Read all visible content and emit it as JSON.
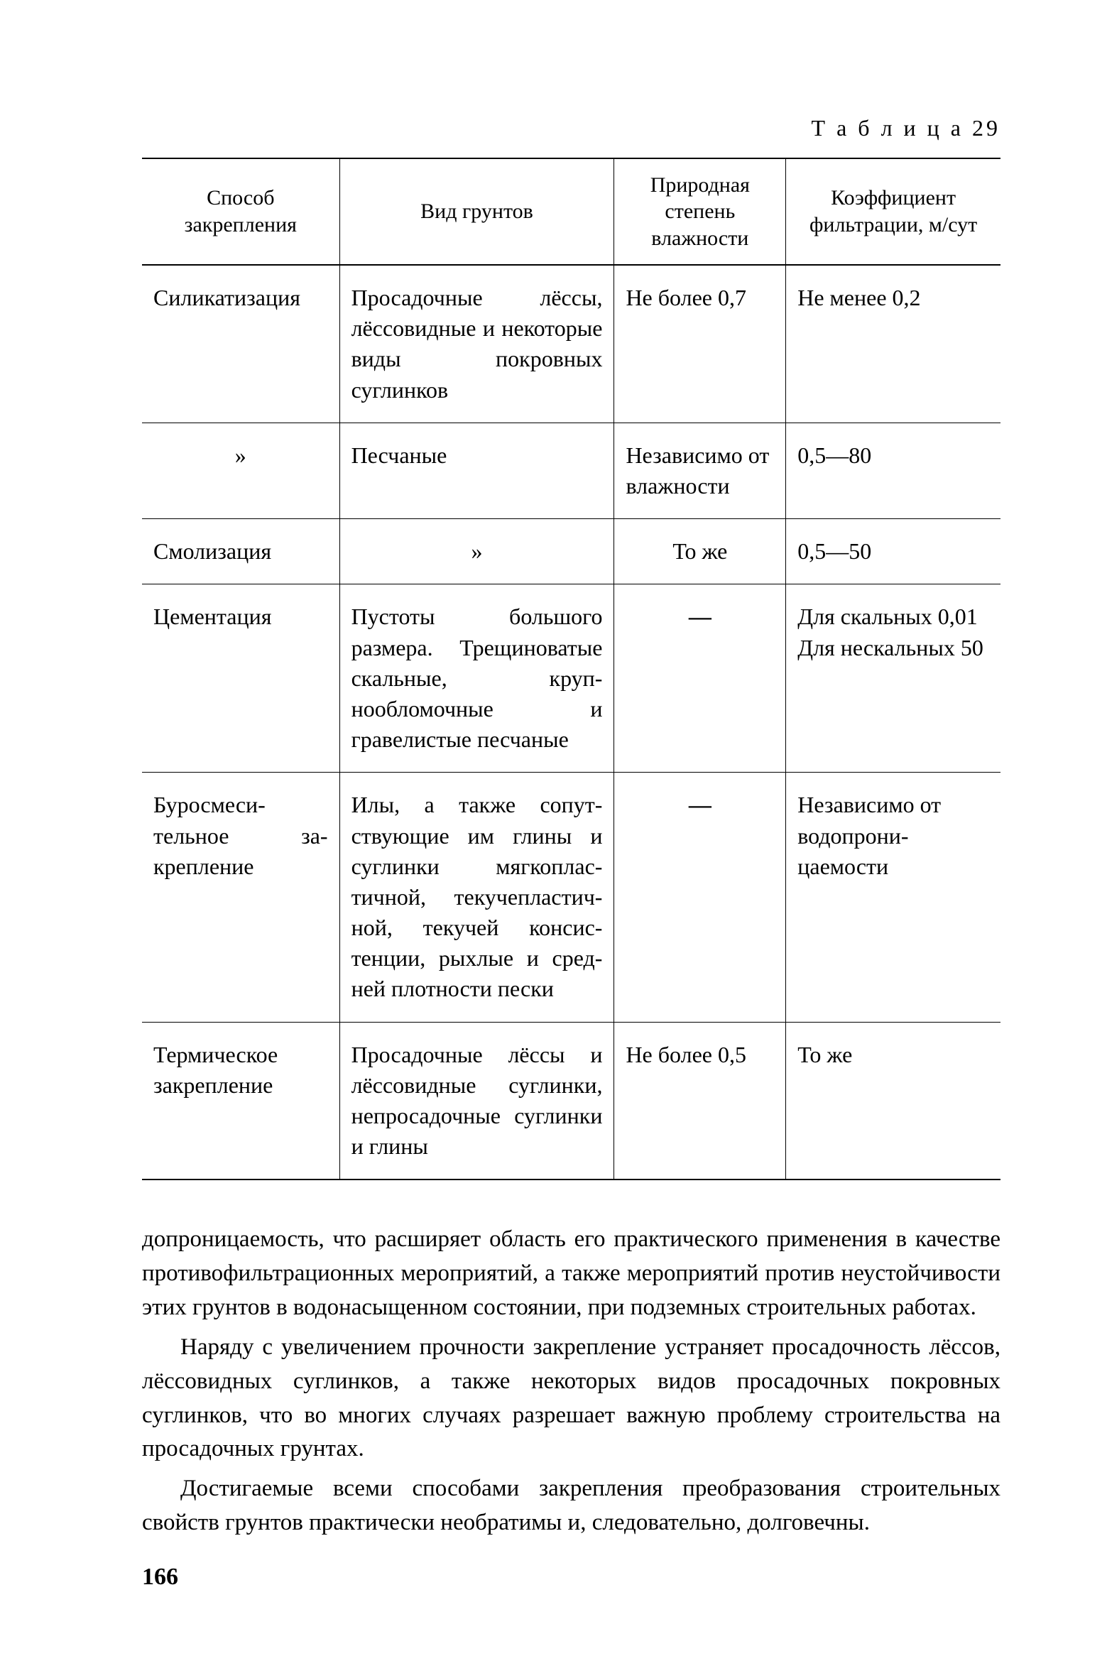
{
  "caption": "Т а б л и ц а  29",
  "headers": {
    "c1": "Способ закрепления",
    "c2": "Вид грунтов",
    "c3": "Природная степень влажности",
    "c4": "Коэффициент фильтрации, м/сут"
  },
  "rows": [
    {
      "c1": "Силикатиза­ция",
      "c2": "Просадочные лёссы, лёссовидные и неко­торые виды покров­ных суглинков",
      "c3": "Не более 0,7",
      "c4": "Не менее 0,2"
    },
    {
      "c1": "»",
      "c2": "Песчаные",
      "c3": "Независимо от влажнос­ти",
      "c4": "0,5—80"
    },
    {
      "c1": "Смолизация",
      "c2": "»",
      "c3": "То же",
      "c4": "0,5—50"
    },
    {
      "c1": "Цементация",
      "c2": "Пустоты большого размера. Трещинова­тые скальные, круп­нообломочные и гравелистые песчаные",
      "c3": "—",
      "c4": "Для скальных 0,01\nДля нескаль­ных 50"
    },
    {
      "c1": "Буросмеси­тельное за­крепление",
      "c2": "Илы, а также сопут­ствующие им глины и суглинки мягкоплас­тичной, текучепластич­ной, текучей консис­тенции, рыхлые и сред­ней плотности пески",
      "c3": "—",
      "c4": "Независимо от водопрони­цаемости"
    },
    {
      "c1": "Термическое закрепление",
      "c2": "Просадочные лёссы и лёссовидные суглин­ки, непросадочные су­глинки и глины",
      "c3": "Не более 0,5",
      "c4": "То же"
    }
  ],
  "paragraphs": {
    "p1": "допроницаемость, что расширяет область его практического примене­ния в качестве противофильтрационных мероприятий, а также меро­приятий против неустойчивости этих грунтов в водонасыщенном со­стоянии, при подземных строительных работах.",
    "p2": "Наряду с увеличением прочности закрепление устраняет про­садочность лёссов, лёссовидных суглинков, а также некоторых видов просадочных покровных суглинков, что во многих случаях разрешает важную проблему строительства на просадочных грунтах.",
    "p3": "Достигаемые всеми способами закрепления преобразования строительных свойств грунтов практически необратимы и, следова­тельно, долговечны."
  },
  "page_number": "166"
}
